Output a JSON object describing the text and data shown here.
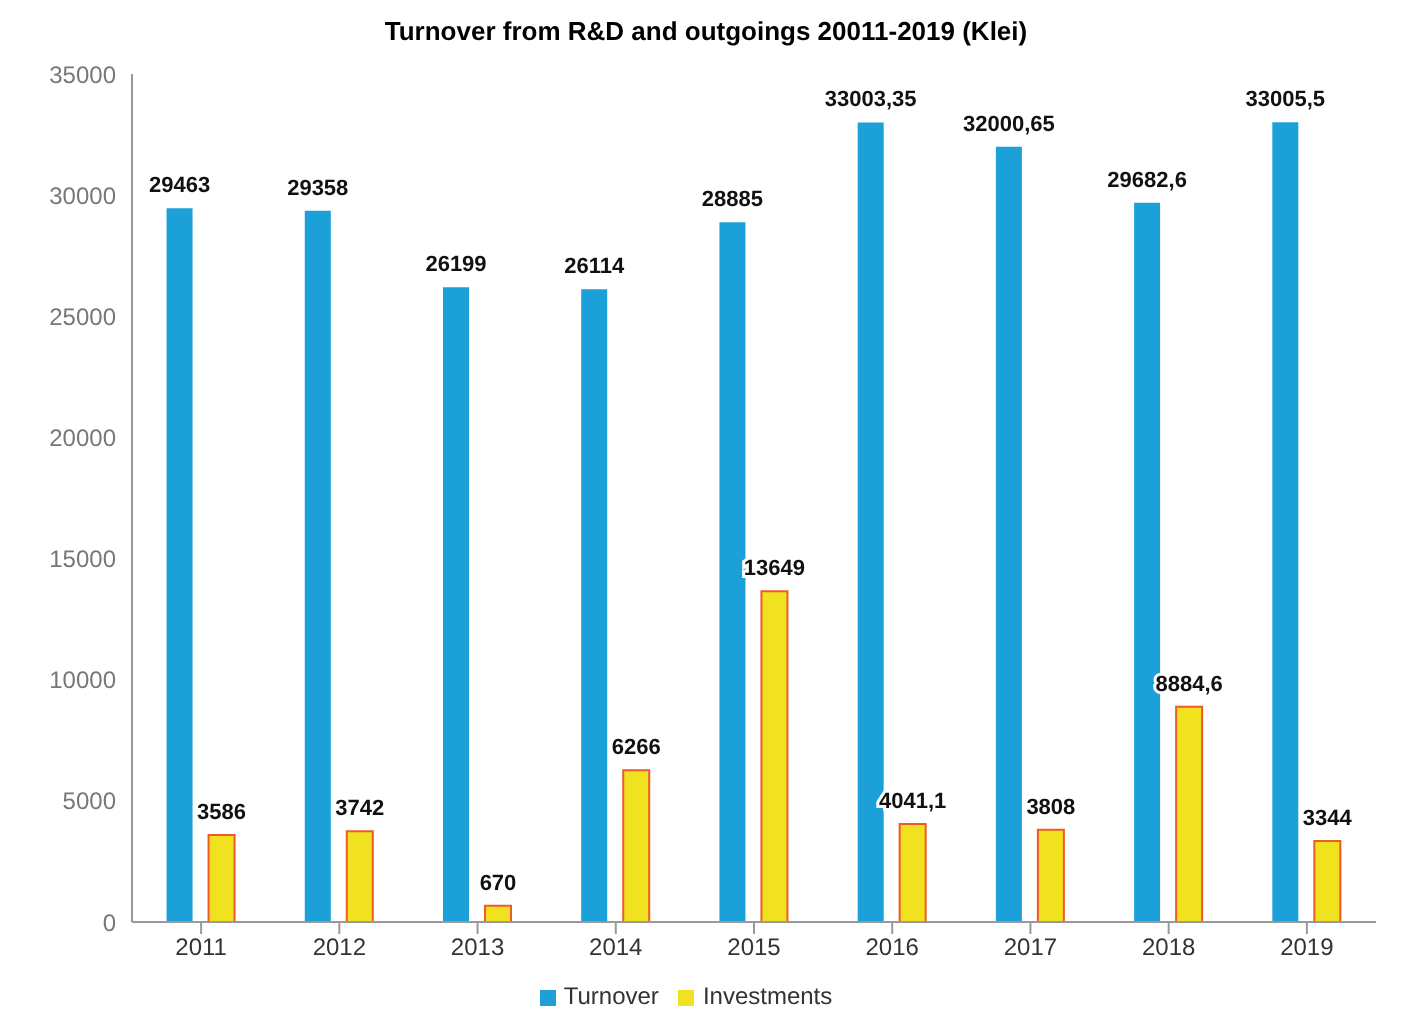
{
  "chart_data": {
    "type": "bar",
    "title": "Turnover from R&D and outgoings 20011-2019 (Klei)",
    "categories": [
      "2011",
      "2012",
      "2013",
      "2014",
      "2015",
      "2016",
      "2017",
      "2018",
      "2019"
    ],
    "series": [
      {
        "name": "Turnover",
        "color": "#1ba1d8",
        "values": [
          29463,
          29358,
          26199,
          26114,
          28885,
          33003.35,
          32000.65,
          29682.6,
          33005.5
        ],
        "value_labels": [
          "29463",
          "29358",
          "26199",
          "26114",
          "28885",
          "33003,35",
          "32000,65",
          "29682,6",
          "33005,5"
        ]
      },
      {
        "name": "Investments",
        "color": "#f0e21e",
        "values": [
          3586,
          3742,
          670,
          6266,
          13649,
          4041.1,
          3808,
          8884.6,
          3344
        ],
        "value_labels": [
          "3586",
          "3742",
          "670",
          "6266",
          "13649",
          "4041,1",
          "3808",
          "8884,6",
          "3344"
        ]
      }
    ],
    "ylim": [
      0,
      35000
    ],
    "yticks": [
      0,
      5000,
      10000,
      15000,
      20000,
      25000,
      30000,
      35000
    ],
    "grid": false,
    "legend": "bottom"
  }
}
